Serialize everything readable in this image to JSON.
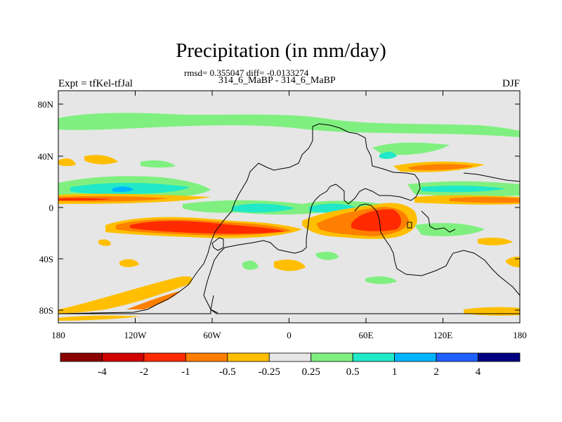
{
  "title": "Precipitation (in mm/day)",
  "stats": "rmsd= 0.355047 diff= -0.0133274",
  "cases": "314_6_MaBP - 314_6_MaBP",
  "expt": "Expt = tfKel-tfJal",
  "season": "DJF",
  "map": {
    "lat_ticks": [
      "80N",
      "40N",
      "0",
      "40S",
      "80S"
    ],
    "lon_ticks": [
      "180",
      "120W",
      "60W",
      "0",
      "60E",
      "120E",
      "180"
    ]
  },
  "legend": {
    "colors": [
      "#8b0000",
      "#d00000",
      "#ff2a00",
      "#ff7f00",
      "#ffbf00",
      "#e6e6e6",
      "#7ff07f",
      "#20e8c8",
      "#00b4ff",
      "#1e60ff",
      "#000080"
    ],
    "labels": [
      "-4",
      "-2",
      "-1",
      "-0.5",
      "-0.25",
      "0.25",
      "0.5",
      "1",
      "2",
      "4"
    ]
  }
}
